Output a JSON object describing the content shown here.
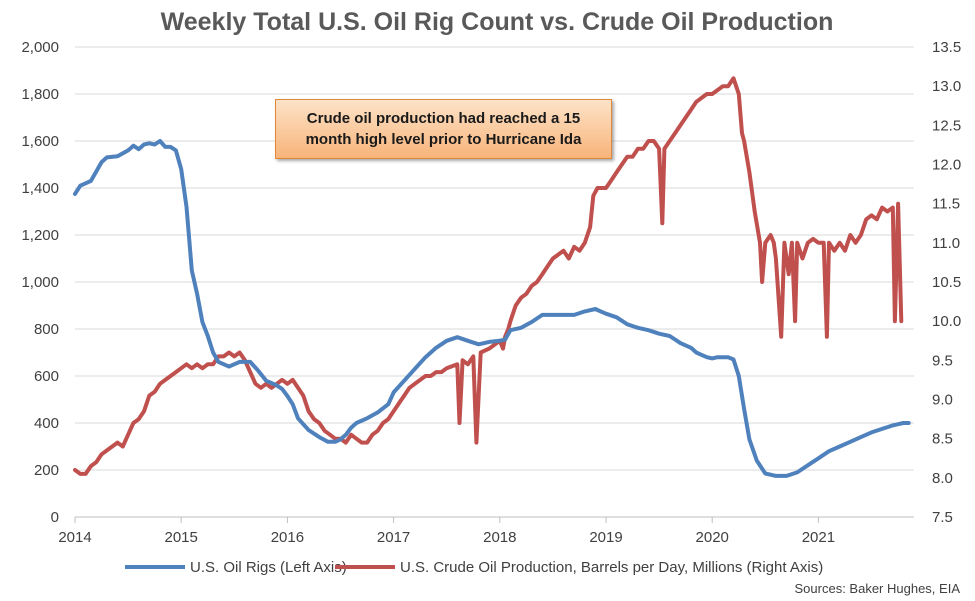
{
  "chart_data": {
    "type": "line",
    "title": "Weekly Total U.S. Oil Rig Count vs. Crude Oil Production",
    "x_ticks": [
      "2014",
      "2015",
      "2016",
      "2017",
      "2018",
      "2019",
      "2020",
      "2021"
    ],
    "y_left": {
      "ticks": [
        "0",
        "200",
        "400",
        "600",
        "800",
        "1,000",
        "1,200",
        "1,400",
        "1,600",
        "1,800",
        "2,000"
      ],
      "range": [
        0,
        2000
      ]
    },
    "y_right": {
      "ticks": [
        "7.5",
        "8.0",
        "8.5",
        "9.0",
        "9.5",
        "10.0",
        "10.5",
        "11.0",
        "11.5",
        "12.0",
        "12.5",
        "13.0",
        "13.5"
      ],
      "range": [
        7.5,
        13.5
      ]
    },
    "x_range": [
      2014.0,
      2021.9
    ],
    "series": [
      {
        "name": "U.S. Oil Rigs (Left Axis)",
        "axis": "left",
        "color": "#4f81bd",
        "points": [
          [
            2014.0,
            1375
          ],
          [
            2014.05,
            1410
          ],
          [
            2014.1,
            1420
          ],
          [
            2014.15,
            1430
          ],
          [
            2014.2,
            1470
          ],
          [
            2014.25,
            1510
          ],
          [
            2014.3,
            1530
          ],
          [
            2014.4,
            1535
          ],
          [
            2014.5,
            1560
          ],
          [
            2014.55,
            1580
          ],
          [
            2014.6,
            1565
          ],
          [
            2014.65,
            1585
          ],
          [
            2014.7,
            1590
          ],
          [
            2014.75,
            1585
          ],
          [
            2014.8,
            1600
          ],
          [
            2014.85,
            1575
          ],
          [
            2014.9,
            1575
          ],
          [
            2014.95,
            1560
          ],
          [
            2015.0,
            1480
          ],
          [
            2015.05,
            1320
          ],
          [
            2015.1,
            1050
          ],
          [
            2015.15,
            950
          ],
          [
            2015.2,
            830
          ],
          [
            2015.25,
            770
          ],
          [
            2015.3,
            700
          ],
          [
            2015.35,
            660
          ],
          [
            2015.45,
            640
          ],
          [
            2015.55,
            660
          ],
          [
            2015.65,
            660
          ],
          [
            2015.72,
            625
          ],
          [
            2015.8,
            580
          ],
          [
            2015.9,
            560
          ],
          [
            2015.95,
            545
          ],
          [
            2016.0,
            515
          ],
          [
            2016.05,
            480
          ],
          [
            2016.1,
            420
          ],
          [
            2016.15,
            395
          ],
          [
            2016.2,
            370
          ],
          [
            2016.3,
            340
          ],
          [
            2016.38,
            320
          ],
          [
            2016.45,
            320
          ],
          [
            2016.5,
            330
          ],
          [
            2016.55,
            350
          ],
          [
            2016.6,
            380
          ],
          [
            2016.65,
            400
          ],
          [
            2016.75,
            420
          ],
          [
            2016.85,
            445
          ],
          [
            2016.95,
            480
          ],
          [
            2017.0,
            530
          ],
          [
            2017.1,
            580
          ],
          [
            2017.2,
            630
          ],
          [
            2017.3,
            680
          ],
          [
            2017.4,
            720
          ],
          [
            2017.5,
            750
          ],
          [
            2017.6,
            765
          ],
          [
            2017.7,
            750
          ],
          [
            2017.8,
            735
          ],
          [
            2017.9,
            745
          ],
          [
            2018.0,
            750
          ],
          [
            2018.05,
            755
          ],
          [
            2018.1,
            795
          ],
          [
            2018.2,
            805
          ],
          [
            2018.3,
            830
          ],
          [
            2018.4,
            860
          ],
          [
            2018.5,
            860
          ],
          [
            2018.6,
            860
          ],
          [
            2018.7,
            860
          ],
          [
            2018.8,
            875
          ],
          [
            2018.9,
            885
          ],
          [
            2018.95,
            875
          ],
          [
            2019.0,
            865
          ],
          [
            2019.1,
            850
          ],
          [
            2019.2,
            820
          ],
          [
            2019.3,
            805
          ],
          [
            2019.4,
            795
          ],
          [
            2019.5,
            780
          ],
          [
            2019.6,
            770
          ],
          [
            2019.7,
            740
          ],
          [
            2019.8,
            720
          ],
          [
            2019.85,
            700
          ],
          [
            2019.9,
            690
          ],
          [
            2019.95,
            680
          ],
          [
            2020.0,
            675
          ],
          [
            2020.05,
            680
          ],
          [
            2020.1,
            680
          ],
          [
            2020.15,
            680
          ],
          [
            2020.2,
            670
          ],
          [
            2020.25,
            600
          ],
          [
            2020.3,
            460
          ],
          [
            2020.35,
            330
          ],
          [
            2020.42,
            240
          ],
          [
            2020.5,
            185
          ],
          [
            2020.6,
            175
          ],
          [
            2020.65,
            175
          ],
          [
            2020.7,
            175
          ],
          [
            2020.8,
            190
          ],
          [
            2020.9,
            220
          ],
          [
            2021.0,
            250
          ],
          [
            2021.1,
            280
          ],
          [
            2021.2,
            300
          ],
          [
            2021.3,
            320
          ],
          [
            2021.4,
            340
          ],
          [
            2021.5,
            360
          ],
          [
            2021.6,
            375
          ],
          [
            2021.7,
            390
          ],
          [
            2021.75,
            395
          ],
          [
            2021.8,
            400
          ],
          [
            2021.85,
            400
          ]
        ]
      },
      {
        "name": "U.S. Crude Oil Production, Barrels per Day, Millions (Right Axis)",
        "axis": "right",
        "color": "#c0504d",
        "points": [
          [
            2014.0,
            8.1
          ],
          [
            2014.05,
            8.05
          ],
          [
            2014.1,
            8.05
          ],
          [
            2014.15,
            8.15
          ],
          [
            2014.2,
            8.2
          ],
          [
            2014.25,
            8.3
          ],
          [
            2014.3,
            8.35
          ],
          [
            2014.35,
            8.4
          ],
          [
            2014.4,
            8.45
          ],
          [
            2014.45,
            8.4
          ],
          [
            2014.5,
            8.55
          ],
          [
            2014.55,
            8.7
          ],
          [
            2014.6,
            8.75
          ],
          [
            2014.65,
            8.85
          ],
          [
            2014.7,
            9.05
          ],
          [
            2014.75,
            9.1
          ],
          [
            2014.8,
            9.2
          ],
          [
            2014.85,
            9.25
          ],
          [
            2014.9,
            9.3
          ],
          [
            2014.95,
            9.35
          ],
          [
            2015.0,
            9.4
          ],
          [
            2015.05,
            9.45
          ],
          [
            2015.1,
            9.4
          ],
          [
            2015.15,
            9.45
          ],
          [
            2015.2,
            9.4
          ],
          [
            2015.25,
            9.45
          ],
          [
            2015.3,
            9.45
          ],
          [
            2015.35,
            9.55
          ],
          [
            2015.4,
            9.55
          ],
          [
            2015.45,
            9.6
          ],
          [
            2015.5,
            9.55
          ],
          [
            2015.55,
            9.6
          ],
          [
            2015.6,
            9.5
          ],
          [
            2015.65,
            9.35
          ],
          [
            2015.7,
            9.2
          ],
          [
            2015.75,
            9.15
          ],
          [
            2015.8,
            9.2
          ],
          [
            2015.85,
            9.15
          ],
          [
            2015.9,
            9.2
          ],
          [
            2015.95,
            9.25
          ],
          [
            2016.0,
            9.2
          ],
          [
            2016.05,
            9.25
          ],
          [
            2016.1,
            9.15
          ],
          [
            2016.15,
            9.05
          ],
          [
            2016.2,
            8.85
          ],
          [
            2016.25,
            8.75
          ],
          [
            2016.3,
            8.7
          ],
          [
            2016.35,
            8.6
          ],
          [
            2016.4,
            8.55
          ],
          [
            2016.45,
            8.5
          ],
          [
            2016.5,
            8.5
          ],
          [
            2016.55,
            8.45
          ],
          [
            2016.6,
            8.55
          ],
          [
            2016.65,
            8.5
          ],
          [
            2016.7,
            8.45
          ],
          [
            2016.75,
            8.45
          ],
          [
            2016.8,
            8.55
          ],
          [
            2016.85,
            8.6
          ],
          [
            2016.9,
            8.7
          ],
          [
            2016.95,
            8.75
          ],
          [
            2017.0,
            8.85
          ],
          [
            2017.05,
            8.95
          ],
          [
            2017.1,
            9.05
          ],
          [
            2017.15,
            9.15
          ],
          [
            2017.2,
            9.2
          ],
          [
            2017.25,
            9.25
          ],
          [
            2017.3,
            9.3
          ],
          [
            2017.35,
            9.3
          ],
          [
            2017.4,
            9.35
          ],
          [
            2017.45,
            9.35
          ],
          [
            2017.5,
            9.4
          ],
          [
            2017.6,
            9.45
          ],
          [
            2017.62,
            8.7
          ],
          [
            2017.65,
            9.5
          ],
          [
            2017.7,
            9.45
          ],
          [
            2017.75,
            9.55
          ],
          [
            2017.78,
            8.45
          ],
          [
            2017.82,
            9.6
          ],
          [
            2017.9,
            9.65
          ],
          [
            2018.0,
            9.75
          ],
          [
            2018.03,
            9.65
          ],
          [
            2018.05,
            9.8
          ],
          [
            2018.08,
            9.9
          ],
          [
            2018.1,
            10.0
          ],
          [
            2018.15,
            10.2
          ],
          [
            2018.2,
            10.3
          ],
          [
            2018.25,
            10.35
          ],
          [
            2018.3,
            10.45
          ],
          [
            2018.35,
            10.5
          ],
          [
            2018.4,
            10.6
          ],
          [
            2018.45,
            10.7
          ],
          [
            2018.5,
            10.8
          ],
          [
            2018.55,
            10.85
          ],
          [
            2018.6,
            10.9
          ],
          [
            2018.65,
            10.8
          ],
          [
            2018.7,
            10.95
          ],
          [
            2018.75,
            10.9
          ],
          [
            2018.8,
            11.0
          ],
          [
            2018.85,
            11.2
          ],
          [
            2018.88,
            11.6
          ],
          [
            2018.92,
            11.7
          ],
          [
            2018.95,
            11.7
          ],
          [
            2019.0,
            11.7
          ],
          [
            2019.05,
            11.8
          ],
          [
            2019.1,
            11.9
          ],
          [
            2019.15,
            12.0
          ],
          [
            2019.2,
            12.1
          ],
          [
            2019.25,
            12.1
          ],
          [
            2019.3,
            12.2
          ],
          [
            2019.35,
            12.2
          ],
          [
            2019.4,
            12.3
          ],
          [
            2019.45,
            12.3
          ],
          [
            2019.5,
            12.2
          ],
          [
            2019.53,
            11.25
          ],
          [
            2019.55,
            12.2
          ],
          [
            2019.6,
            12.3
          ],
          [
            2019.65,
            12.4
          ],
          [
            2019.7,
            12.5
          ],
          [
            2019.75,
            12.6
          ],
          [
            2019.8,
            12.7
          ],
          [
            2019.85,
            12.8
          ],
          [
            2019.9,
            12.85
          ],
          [
            2019.95,
            12.9
          ],
          [
            2020.0,
            12.9
          ],
          [
            2020.05,
            12.95
          ],
          [
            2020.1,
            13.0
          ],
          [
            2020.15,
            13.0
          ],
          [
            2020.2,
            13.1
          ],
          [
            2020.25,
            12.9
          ],
          [
            2020.28,
            12.4
          ],
          [
            2020.3,
            12.3
          ],
          [
            2020.35,
            11.9
          ],
          [
            2020.4,
            11.4
          ],
          [
            2020.45,
            11.0
          ],
          [
            2020.47,
            10.5
          ],
          [
            2020.5,
            11.0
          ],
          [
            2020.55,
            11.1
          ],
          [
            2020.58,
            11.0
          ],
          [
            2020.6,
            10.8
          ],
          [
            2020.65,
            9.8
          ],
          [
            2020.68,
            11.0
          ],
          [
            2020.72,
            10.6
          ],
          [
            2020.75,
            11.0
          ],
          [
            2020.78,
            10.0
          ],
          [
            2020.8,
            11.0
          ],
          [
            2020.85,
            10.8
          ],
          [
            2020.9,
            11.0
          ],
          [
            2020.95,
            11.05
          ],
          [
            2021.0,
            11.0
          ],
          [
            2021.05,
            11.0
          ],
          [
            2021.08,
            9.8
          ],
          [
            2021.1,
            11.0
          ],
          [
            2021.15,
            10.9
          ],
          [
            2021.2,
            11.0
          ],
          [
            2021.25,
            10.9
          ],
          [
            2021.3,
            11.1
          ],
          [
            2021.35,
            11.0
          ],
          [
            2021.4,
            11.1
          ],
          [
            2021.45,
            11.3
          ],
          [
            2021.5,
            11.35
          ],
          [
            2021.55,
            11.3
          ],
          [
            2021.6,
            11.45
          ],
          [
            2021.65,
            11.4
          ],
          [
            2021.7,
            11.45
          ],
          [
            2021.72,
            10.0
          ],
          [
            2021.75,
            11.5
          ],
          [
            2021.78,
            10.0
          ]
        ]
      }
    ],
    "annotation": "Crude oil production had reached a 15 month high level prior to Hurricane Ida",
    "source": "Sources: Baker Hughes, EIA",
    "grid": true,
    "legend_position": "bottom"
  }
}
